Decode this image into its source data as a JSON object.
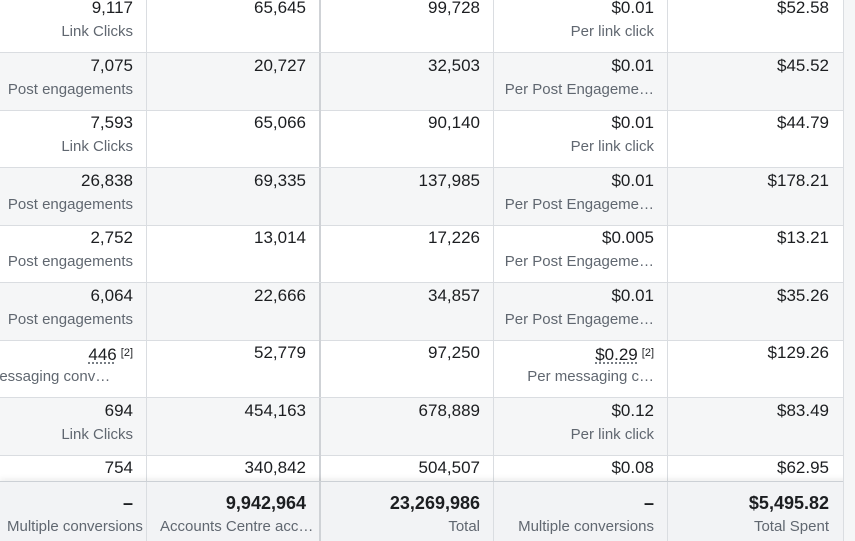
{
  "rows": [
    {
      "c1": "9,117",
      "c1_sub": "Link Clicks",
      "c2": "65,645",
      "c3": "99,728",
      "c4": "$0.01",
      "c4_sub": "Per link click",
      "c5": "$52.58"
    },
    {
      "c1": "7,075",
      "c1_sub": "Post engagements",
      "c2": "20,727",
      "c3": "32,503",
      "c4": "$0.01",
      "c4_sub": "Per Post Engageme…",
      "c5": "$45.52"
    },
    {
      "c1": "7,593",
      "c1_sub": "Link Clicks",
      "c2": "65,066",
      "c3": "90,140",
      "c4": "$0.01",
      "c4_sub": "Per link click",
      "c5": "$44.79"
    },
    {
      "c1": "26,838",
      "c1_sub": "Post engagements",
      "c2": "69,335",
      "c3": "137,985",
      "c4": "$0.01",
      "c4_sub": "Per Post Engageme…",
      "c5": "$178.21"
    },
    {
      "c1": "2,752",
      "c1_sub": "Post engagements",
      "c2": "13,014",
      "c3": "17,226",
      "c4": "$0.005",
      "c4_sub": "Per Post Engageme…",
      "c5": "$13.21"
    },
    {
      "c1": "6,064",
      "c1_sub": "Post engagements",
      "c2": "22,666",
      "c3": "34,857",
      "c4": "$0.01",
      "c4_sub": "Per Post Engageme…",
      "c5": "$35.26"
    },
    {
      "c1": "446",
      "c1_note": "[2]",
      "c1_sub": "lessaging conv…",
      "c2": "52,779",
      "c3": "97,250",
      "c4": "$0.29",
      "c4_note": "[2]",
      "c4_sub": "Per messaging c…",
      "c5": "$129.26"
    },
    {
      "c1": "694",
      "c1_sub": "Link Clicks",
      "c2": "454,163",
      "c3": "678,889",
      "c4": "$0.12",
      "c4_sub": "Per link click",
      "c5": "$83.49"
    },
    {
      "c1": "754",
      "c1_sub": "",
      "c2": "340,842",
      "c3": "504,507",
      "c4": "$0.08",
      "c4_sub": "",
      "c5": "$62.95"
    }
  ],
  "footer": {
    "c1": "–",
    "c1_sub": "Multiple conversions",
    "c2": "9,942,964",
    "c2_sub": "Accounts Centre acc…",
    "c3": "23,269,986",
    "c3_sub": "Total",
    "c4": "–",
    "c4_sub": "Multiple conversions",
    "c5": "$5,495.82",
    "c5_sub": "Total Spent"
  }
}
